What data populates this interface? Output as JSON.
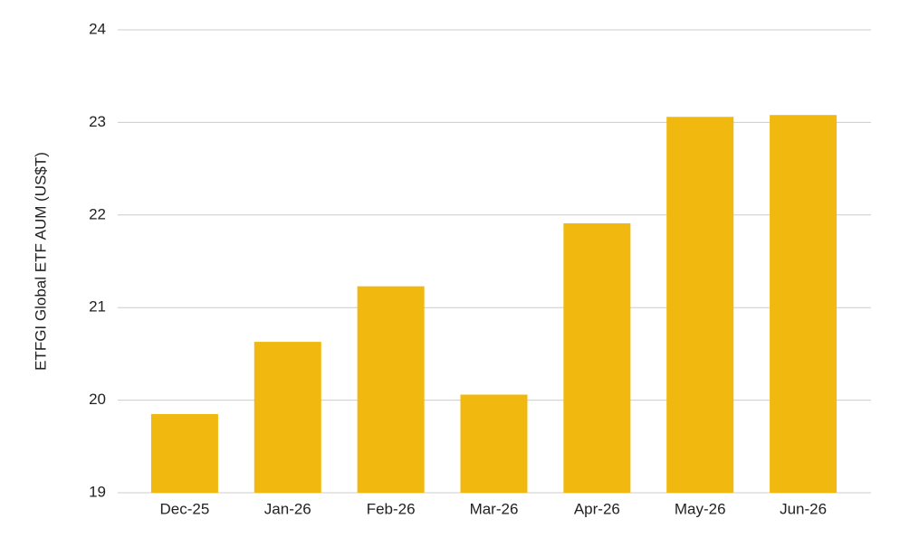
{
  "chart_data": {
    "type": "bar",
    "y_label": "ETFGI Global ETF AUM (US$T)",
    "categories": [
      "Dec-25",
      "Jan-26",
      "Feb-26",
      "Mar-26",
      "Apr-26",
      "May-26",
      "Jun-26"
    ],
    "values": [
      19.85,
      20.63,
      21.23,
      20.06,
      21.91,
      23.06,
      23.08
    ],
    "color": "#f1b90f",
    "ylim": [
      19,
      24
    ],
    "yticks": [
      19,
      20,
      21,
      22,
      23,
      24
    ],
    "grid": true
  }
}
